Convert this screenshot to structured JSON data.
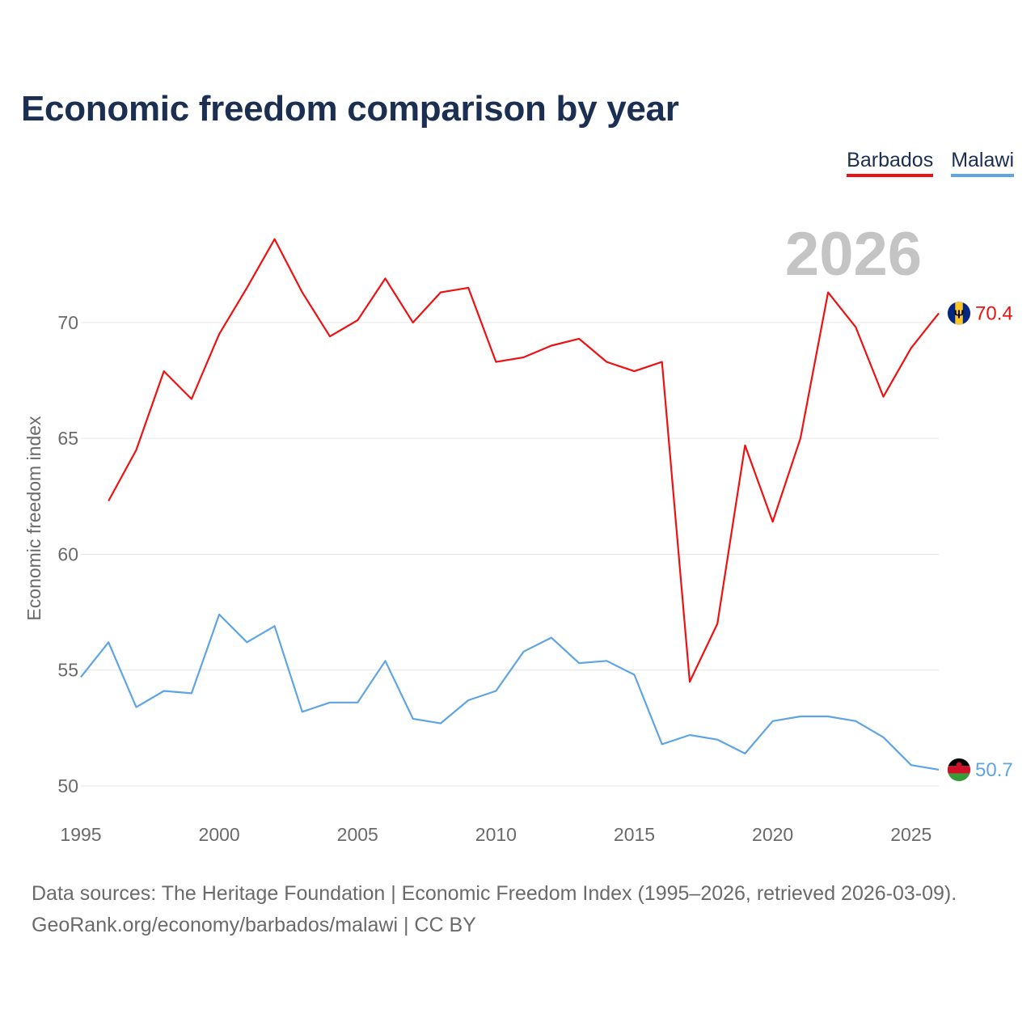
{
  "title": "Economic freedom comparison by year",
  "legend": [
    {
      "label": "Barbados",
      "color": "#ee1111"
    },
    {
      "label": "Malawi",
      "color": "#5fa4e3"
    }
  ],
  "footer": {
    "line1": "Data sources: The Heritage Foundation | Economic Freedom Index (1995–2026, retrieved 2026-03-09).",
    "line2": "GeoRank.org/economy/barbados/malawi | CC BY"
  },
  "chart_data": {
    "type": "line",
    "title": "Economic freedom comparison by year",
    "xlabel": "",
    "ylabel": "Economic freedom index",
    "xlim": [
      1995,
      2026
    ],
    "ylim": [
      50,
      73.8
    ],
    "x_ticks": [
      1995,
      2000,
      2005,
      2010,
      2015,
      2020,
      2025
    ],
    "y_ticks": [
      50,
      55,
      60,
      65,
      70
    ],
    "year_label": "2026",
    "grid": true,
    "legend_position": "top-right",
    "series": [
      {
        "name": "Barbados",
        "color": "#ee1111",
        "end_label": "70.4",
        "points": [
          [
            1996,
            62.3
          ],
          [
            1997,
            64.5
          ],
          [
            1998,
            67.9
          ],
          [
            1999,
            66.7
          ],
          [
            2000,
            69.5
          ],
          [
            2001,
            71.5
          ],
          [
            2002,
            73.6
          ],
          [
            2003,
            71.3
          ],
          [
            2004,
            69.4
          ],
          [
            2005,
            70.1
          ],
          [
            2006,
            71.9
          ],
          [
            2007,
            70.0
          ],
          [
            2008,
            71.3
          ],
          [
            2009,
            71.5
          ],
          [
            2010,
            68.3
          ],
          [
            2011,
            68.5
          ],
          [
            2012,
            69.0
          ],
          [
            2013,
            69.3
          ],
          [
            2014,
            68.3
          ],
          [
            2015,
            67.9
          ],
          [
            2016,
            68.3
          ],
          [
            2017,
            54.5
          ],
          [
            2018,
            57.0
          ],
          [
            2019,
            64.7
          ],
          [
            2020,
            61.4
          ],
          [
            2021,
            65.0
          ],
          [
            2022,
            71.3
          ],
          [
            2023,
            69.8
          ],
          [
            2024,
            66.8
          ],
          [
            2025,
            68.9
          ],
          [
            2026,
            70.4
          ]
        ]
      },
      {
        "name": "Malawi",
        "color": "#5fa4e3",
        "end_label": "50.7",
        "points": [
          [
            1995,
            54.7
          ],
          [
            1996,
            56.2
          ],
          [
            1997,
            53.4
          ],
          [
            1998,
            54.1
          ],
          [
            1999,
            54.0
          ],
          [
            2000,
            57.4
          ],
          [
            2001,
            56.2
          ],
          [
            2002,
            56.9
          ],
          [
            2003,
            53.2
          ],
          [
            2004,
            53.6
          ],
          [
            2005,
            53.6
          ],
          [
            2006,
            55.4
          ],
          [
            2007,
            52.9
          ],
          [
            2008,
            52.7
          ],
          [
            2009,
            53.7
          ],
          [
            2010,
            54.1
          ],
          [
            2011,
            55.8
          ],
          [
            2012,
            56.4
          ],
          [
            2013,
            55.3
          ],
          [
            2014,
            55.4
          ],
          [
            2015,
            54.8
          ],
          [
            2016,
            51.8
          ],
          [
            2017,
            52.2
          ],
          [
            2018,
            52.0
          ],
          [
            2019,
            51.4
          ],
          [
            2020,
            52.8
          ],
          [
            2021,
            53.0
          ],
          [
            2022,
            53.0
          ],
          [
            2023,
            52.8
          ],
          [
            2024,
            52.1
          ],
          [
            2025,
            50.9
          ],
          [
            2026,
            50.7
          ]
        ]
      }
    ]
  }
}
